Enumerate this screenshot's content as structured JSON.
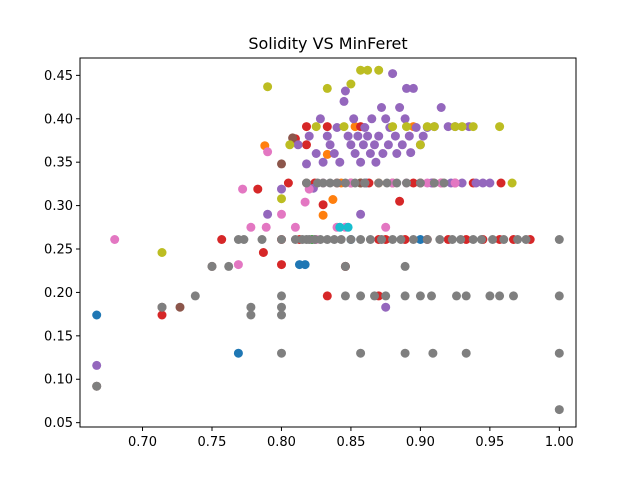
{
  "chart_data": {
    "type": "scatter",
    "title": "Solidity VS MinFeret",
    "xlabel": "",
    "ylabel": "",
    "xlim": [
      0.655,
      1.012
    ],
    "ylim": [
      0.045,
      0.47
    ],
    "xticks": [
      "0.70",
      "0.75",
      "0.80",
      "0.85",
      "0.90",
      "0.95",
      "1.00"
    ],
    "yticks": [
      "0.05",
      "0.10",
      "0.15",
      "0.20",
      "0.25",
      "0.30",
      "0.35",
      "0.40",
      "0.45"
    ],
    "grid": false,
    "series": [
      {
        "color": "#1f77b4",
        "points": [
          [
            0.667,
            0.174
          ],
          [
            0.769,
            0.13
          ],
          [
            0.813,
            0.232
          ],
          [
            0.817,
            0.232
          ],
          [
            0.85,
            0.261
          ],
          [
            0.861,
            0.326
          ],
          [
            0.9,
            0.261
          ]
        ]
      },
      {
        "color": "#ff7f0e",
        "points": [
          [
            0.788,
            0.369
          ],
          [
            0.83,
            0.289
          ],
          [
            0.833,
            0.359
          ],
          [
            0.837,
            0.307
          ],
          [
            0.843,
            0.326
          ],
          [
            0.853,
            0.391
          ],
          [
            0.87,
            0.326
          ],
          [
            0.895,
            0.391
          ]
        ]
      },
      {
        "color": "#2ca02c",
        "points": [
          [
            0.822,
            0.261
          ],
          [
            0.857,
            0.326
          ]
        ]
      },
      {
        "color": "#d62728",
        "points": [
          [
            0.714,
            0.174
          ],
          [
            0.757,
            0.261
          ],
          [
            0.783,
            0.319
          ],
          [
            0.787,
            0.246
          ],
          [
            0.8,
            0.232
          ],
          [
            0.8,
            0.261
          ],
          [
            0.805,
            0.326
          ],
          [
            0.81,
            0.377
          ],
          [
            0.813,
            0.261
          ],
          [
            0.818,
            0.391
          ],
          [
            0.818,
            0.37
          ],
          [
            0.824,
            0.326
          ],
          [
            0.83,
            0.301
          ],
          [
            0.833,
            0.391
          ],
          [
            0.833,
            0.196
          ],
          [
            0.84,
            0.326
          ],
          [
            0.846,
            0.23
          ],
          [
            0.85,
            0.326
          ],
          [
            0.857,
            0.391
          ],
          [
            0.863,
            0.326
          ],
          [
            0.87,
            0.196
          ],
          [
            0.87,
            0.261
          ],
          [
            0.875,
            0.261
          ],
          [
            0.88,
            0.326
          ],
          [
            0.885,
            0.305
          ],
          [
            0.889,
            0.261
          ],
          [
            0.895,
            0.326
          ],
          [
            0.9,
            0.326
          ],
          [
            0.905,
            0.261
          ],
          [
            0.909,
            0.326
          ],
          [
            0.915,
            0.326
          ],
          [
            0.92,
            0.261
          ],
          [
            0.925,
            0.326
          ],
          [
            0.933,
            0.261
          ],
          [
            0.938,
            0.326
          ],
          [
            0.945,
            0.261
          ],
          [
            0.957,
            0.261
          ],
          [
            0.958,
            0.326
          ],
          [
            0.967,
            0.261
          ],
          [
            0.979,
            0.261
          ]
        ]
      },
      {
        "color": "#9467bd",
        "points": [
          [
            0.667,
            0.116
          ],
          [
            0.79,
            0.29
          ],
          [
            0.8,
            0.319
          ],
          [
            0.812,
            0.37
          ],
          [
            0.818,
            0.348
          ],
          [
            0.82,
            0.38
          ],
          [
            0.823,
            0.32
          ],
          [
            0.825,
            0.36
          ],
          [
            0.828,
            0.4
          ],
          [
            0.83,
            0.35
          ],
          [
            0.833,
            0.38
          ],
          [
            0.835,
            0.37
          ],
          [
            0.838,
            0.36
          ],
          [
            0.84,
            0.39
          ],
          [
            0.842,
            0.35
          ],
          [
            0.845,
            0.42
          ],
          [
            0.846,
            0.432
          ],
          [
            0.848,
            0.38
          ],
          [
            0.85,
            0.37
          ],
          [
            0.852,
            0.4
          ],
          [
            0.853,
            0.36
          ],
          [
            0.855,
            0.38
          ],
          [
            0.857,
            0.35
          ],
          [
            0.857,
            0.29
          ],
          [
            0.859,
            0.37
          ],
          [
            0.86,
            0.39
          ],
          [
            0.862,
            0.38
          ],
          [
            0.864,
            0.36
          ],
          [
            0.865,
            0.4
          ],
          [
            0.867,
            0.37
          ],
          [
            0.868,
            0.35
          ],
          [
            0.87,
            0.38
          ],
          [
            0.872,
            0.413
          ],
          [
            0.873,
            0.36
          ],
          [
            0.875,
            0.4
          ],
          [
            0.875,
            0.183
          ],
          [
            0.877,
            0.37
          ],
          [
            0.878,
            0.39
          ],
          [
            0.88,
            0.452
          ],
          [
            0.882,
            0.38
          ],
          [
            0.883,
            0.36
          ],
          [
            0.885,
            0.413
          ],
          [
            0.887,
            0.37
          ],
          [
            0.889,
            0.4
          ],
          [
            0.89,
            0.435
          ],
          [
            0.892,
            0.38
          ],
          [
            0.893,
            0.361
          ],
          [
            0.895,
            0.435
          ],
          [
            0.897,
            0.39
          ],
          [
            0.9,
            0.37
          ],
          [
            0.902,
            0.38
          ],
          [
            0.905,
            0.39
          ],
          [
            0.908,
            0.326
          ],
          [
            0.91,
            0.391
          ],
          [
            0.915,
            0.413
          ],
          [
            0.92,
            0.391
          ],
          [
            0.922,
            0.326
          ],
          [
            0.925,
            0.391
          ],
          [
            0.93,
            0.326
          ],
          [
            0.935,
            0.391
          ],
          [
            0.94,
            0.326
          ],
          [
            0.945,
            0.326
          ],
          [
            0.95,
            0.326
          ]
        ]
      },
      {
        "color": "#8c564b",
        "points": [
          [
            0.667,
            0.092
          ],
          [
            0.714,
            0.183
          ],
          [
            0.727,
            0.183
          ],
          [
            0.75,
            0.23
          ],
          [
            0.8,
            0.348
          ],
          [
            0.808,
            0.378
          ],
          [
            0.818,
            0.326
          ],
          [
            0.846,
            0.23
          ],
          [
            0.857,
            0.326
          ]
        ]
      },
      {
        "color": "#e377c2",
        "points": [
          [
            0.68,
            0.261
          ],
          [
            0.769,
            0.232
          ],
          [
            0.772,
            0.319
          ],
          [
            0.778,
            0.275
          ],
          [
            0.789,
            0.275
          ],
          [
            0.79,
            0.362
          ],
          [
            0.8,
            0.29
          ],
          [
            0.81,
            0.275
          ],
          [
            0.817,
            0.304
          ],
          [
            0.82,
            0.319
          ],
          [
            0.825,
            0.261
          ],
          [
            0.83,
            0.326
          ],
          [
            0.84,
            0.275
          ],
          [
            0.846,
            0.275
          ],
          [
            0.85,
            0.326
          ],
          [
            0.86,
            0.326
          ],
          [
            0.875,
            0.275
          ],
          [
            0.88,
            0.326
          ],
          [
            0.89,
            0.326
          ],
          [
            0.905,
            0.326
          ],
          [
            0.915,
            0.326
          ],
          [
            0.925,
            0.326
          ]
        ]
      },
      {
        "color": "#7f7f7f",
        "points": [
          [
            0.667,
            0.092
          ],
          [
            0.714,
            0.183
          ],
          [
            0.738,
            0.196
          ],
          [
            0.75,
            0.23
          ],
          [
            0.762,
            0.23
          ],
          [
            0.769,
            0.261
          ],
          [
            0.773,
            0.261
          ],
          [
            0.778,
            0.183
          ],
          [
            0.778,
            0.174
          ],
          [
            0.786,
            0.261
          ],
          [
            0.8,
            0.261
          ],
          [
            0.8,
            0.196
          ],
          [
            0.8,
            0.183
          ],
          [
            0.8,
            0.174
          ],
          [
            0.8,
            0.13
          ],
          [
            0.81,
            0.261
          ],
          [
            0.815,
            0.261
          ],
          [
            0.818,
            0.261
          ],
          [
            0.818,
            0.326
          ],
          [
            0.82,
            0.261
          ],
          [
            0.824,
            0.261
          ],
          [
            0.826,
            0.326
          ],
          [
            0.828,
            0.261
          ],
          [
            0.83,
            0.326
          ],
          [
            0.833,
            0.261
          ],
          [
            0.835,
            0.326
          ],
          [
            0.838,
            0.261
          ],
          [
            0.84,
            0.326
          ],
          [
            0.843,
            0.261
          ],
          [
            0.846,
            0.326
          ],
          [
            0.846,
            0.196
          ],
          [
            0.846,
            0.23
          ],
          [
            0.85,
            0.261
          ],
          [
            0.853,
            0.326
          ],
          [
            0.857,
            0.261
          ],
          [
            0.857,
            0.13
          ],
          [
            0.857,
            0.196
          ],
          [
            0.86,
            0.326
          ],
          [
            0.864,
            0.261
          ],
          [
            0.867,
            0.196
          ],
          [
            0.87,
            0.326
          ],
          [
            0.872,
            0.261
          ],
          [
            0.875,
            0.196
          ],
          [
            0.876,
            0.326
          ],
          [
            0.88,
            0.261
          ],
          [
            0.883,
            0.326
          ],
          [
            0.886,
            0.261
          ],
          [
            0.889,
            0.196
          ],
          [
            0.889,
            0.23
          ],
          [
            0.889,
            0.13
          ],
          [
            0.89,
            0.326
          ],
          [
            0.895,
            0.261
          ],
          [
            0.9,
            0.326
          ],
          [
            0.9,
            0.196
          ],
          [
            0.905,
            0.261
          ],
          [
            0.908,
            0.196
          ],
          [
            0.909,
            0.13
          ],
          [
            0.91,
            0.326
          ],
          [
            0.914,
            0.261
          ],
          [
            0.917,
            0.326
          ],
          [
            0.923,
            0.261
          ],
          [
            0.926,
            0.196
          ],
          [
            0.929,
            0.261
          ],
          [
            0.933,
            0.13
          ],
          [
            0.933,
            0.196
          ],
          [
            0.938,
            0.261
          ],
          [
            0.944,
            0.261
          ],
          [
            0.95,
            0.196
          ],
          [
            0.952,
            0.261
          ],
          [
            0.957,
            0.196
          ],
          [
            0.96,
            0.261
          ],
          [
            0.967,
            0.196
          ],
          [
            0.97,
            0.261
          ],
          [
            0.976,
            0.261
          ],
          [
            1.0,
            0.261
          ],
          [
            1.0,
            0.196
          ],
          [
            1.0,
            0.13
          ],
          [
            1.0,
            0.065
          ]
        ]
      },
      {
        "color": "#bcbd22",
        "points": [
          [
            0.714,
            0.246
          ],
          [
            0.79,
            0.437
          ],
          [
            0.8,
            0.308
          ],
          [
            0.806,
            0.37
          ],
          [
            0.825,
            0.391
          ],
          [
            0.833,
            0.435
          ],
          [
            0.845,
            0.391
          ],
          [
            0.85,
            0.44
          ],
          [
            0.857,
            0.456
          ],
          [
            0.862,
            0.456
          ],
          [
            0.87,
            0.456
          ],
          [
            0.88,
            0.391
          ],
          [
            0.89,
            0.391
          ],
          [
            0.9,
            0.37
          ],
          [
            0.905,
            0.391
          ],
          [
            0.91,
            0.391
          ],
          [
            0.925,
            0.391
          ],
          [
            0.93,
            0.391
          ],
          [
            0.938,
            0.391
          ],
          [
            0.957,
            0.391
          ],
          [
            0.966,
            0.326
          ]
        ]
      },
      {
        "color": "#17becf",
        "points": [
          [
            0.842,
            0.275
          ],
          [
            0.848,
            0.275
          ]
        ]
      }
    ]
  }
}
